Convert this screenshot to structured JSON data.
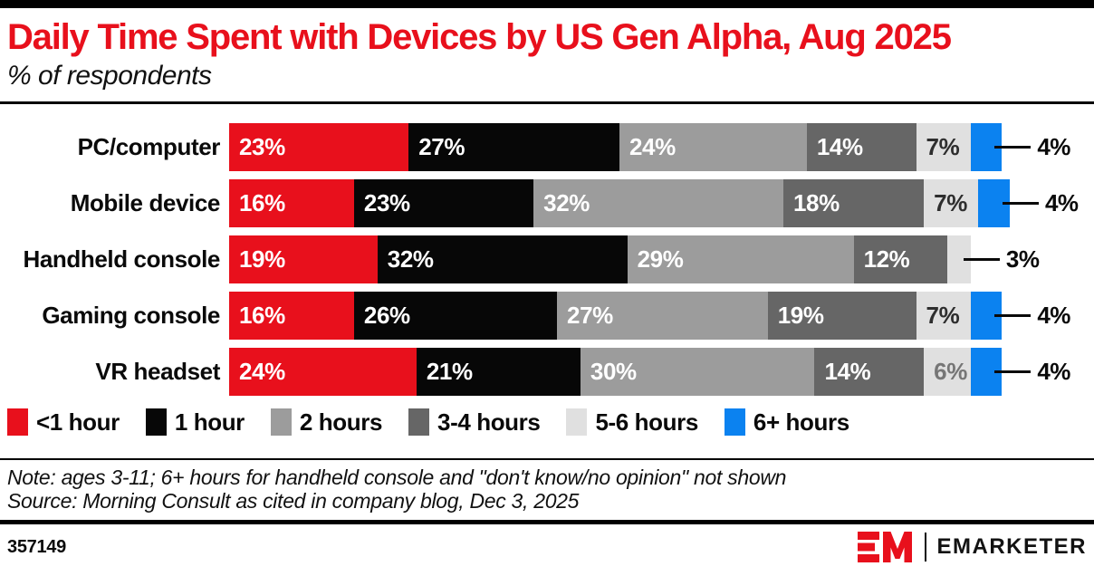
{
  "header": {
    "title": "Daily Time Spent with Devices by US Gen Alpha, Aug 2025",
    "subtitle": "% of respondents"
  },
  "chart_data": {
    "type": "bar",
    "stacked": true,
    "orientation": "horizontal",
    "unit": "% of respondents",
    "categories": [
      "PC/computer",
      "Mobile device",
      "Handheld console",
      "Gaming console",
      "VR headset"
    ],
    "series": [
      {
        "name": "<1 hour",
        "key": "lt1",
        "values": [
          23,
          16,
          19,
          16,
          24
        ]
      },
      {
        "name": "1 hour",
        "key": "h1",
        "values": [
          27,
          23,
          32,
          26,
          21
        ]
      },
      {
        "name": "2 hours",
        "key": "h2",
        "values": [
          24,
          32,
          29,
          27,
          30
        ]
      },
      {
        "name": "3-4 hours",
        "key": "h34",
        "values": [
          14,
          18,
          12,
          19,
          14
        ]
      },
      {
        "name": "5-6 hours",
        "key": "h56",
        "values": [
          7,
          7,
          3,
          7,
          6
        ]
      },
      {
        "name": "6+ hours",
        "key": "h6plus",
        "values": [
          4,
          4,
          null,
          4,
          4
        ]
      }
    ],
    "colors": {
      "lt1": "#e8101c",
      "h1": "#070707",
      "h2": "#9c9c9c",
      "h34": "#666666",
      "h56": "#e0e0e0",
      "h6plus": "#0b82f0"
    },
    "rows": [
      {
        "label": "PC/computer",
        "callout": "4%",
        "segments": [
          {
            "key": "lt1",
            "value": 23,
            "text": "23%",
            "label_color": "white"
          },
          {
            "key": "h1",
            "value": 27,
            "text": "27%",
            "label_color": "white"
          },
          {
            "key": "h2",
            "value": 24,
            "text": "24%",
            "label_color": "white"
          },
          {
            "key": "h34",
            "value": 14,
            "text": "14%",
            "label_color": "white"
          },
          {
            "key": "h56",
            "value": 7,
            "text": "7%",
            "label_color": "dark"
          },
          {
            "key": "h6plus",
            "value": 4,
            "text": "",
            "label_color": null
          }
        ]
      },
      {
        "label": "Mobile device",
        "callout": "4%",
        "segments": [
          {
            "key": "lt1",
            "value": 16,
            "text": "16%",
            "label_color": "white"
          },
          {
            "key": "h1",
            "value": 23,
            "text": "23%",
            "label_color": "white"
          },
          {
            "key": "h2",
            "value": 32,
            "text": "32%",
            "label_color": "white"
          },
          {
            "key": "h34",
            "value": 18,
            "text": "18%",
            "label_color": "white"
          },
          {
            "key": "h56",
            "value": 7,
            "text": "7%",
            "label_color": "dark"
          },
          {
            "key": "h6plus",
            "value": 4,
            "text": "",
            "label_color": null
          }
        ]
      },
      {
        "label": "Handheld console",
        "callout": "3%",
        "segments": [
          {
            "key": "lt1",
            "value": 19,
            "text": "19%",
            "label_color": "white"
          },
          {
            "key": "h1",
            "value": 32,
            "text": "32%",
            "label_color": "white"
          },
          {
            "key": "h2",
            "value": 29,
            "text": "29%",
            "label_color": "white"
          },
          {
            "key": "h34",
            "value": 12,
            "text": "12%",
            "label_color": "white"
          },
          {
            "key": "h56",
            "value": 3,
            "text": "",
            "label_color": null
          }
        ]
      },
      {
        "label": "Gaming console",
        "callout": "4%",
        "segments": [
          {
            "key": "lt1",
            "value": 16,
            "text": "16%",
            "label_color": "white"
          },
          {
            "key": "h1",
            "value": 26,
            "text": "26%",
            "label_color": "white"
          },
          {
            "key": "h2",
            "value": 27,
            "text": "27%",
            "label_color": "white"
          },
          {
            "key": "h34",
            "value": 19,
            "text": "19%",
            "label_color": "white"
          },
          {
            "key": "h56",
            "value": 7,
            "text": "7%",
            "label_color": "dark"
          },
          {
            "key": "h6plus",
            "value": 4,
            "text": "",
            "label_color": null
          }
        ]
      },
      {
        "label": "VR headset",
        "callout": "4%",
        "segments": [
          {
            "key": "lt1",
            "value": 24,
            "text": "24%",
            "label_color": "white"
          },
          {
            "key": "h1",
            "value": 21,
            "text": "21%",
            "label_color": "white"
          },
          {
            "key": "h2",
            "value": 30,
            "text": "30%",
            "label_color": "white"
          },
          {
            "key": "h34",
            "value": 14,
            "text": "14%",
            "label_color": "white"
          },
          {
            "key": "h56",
            "value": 6,
            "text": "6%",
            "label_color": "gray"
          },
          {
            "key": "h6plus",
            "value": 4,
            "text": "",
            "label_color": null
          }
        ]
      }
    ]
  },
  "legend": {
    "items": [
      {
        "key": "lt1",
        "label": "<1 hour"
      },
      {
        "key": "h1",
        "label": "1 hour"
      },
      {
        "key": "h2",
        "label": "2 hours"
      },
      {
        "key": "h34",
        "label": "3-4 hours"
      },
      {
        "key": "h56",
        "label": "5-6 hours"
      },
      {
        "key": "h6plus",
        "label": "6+ hours"
      }
    ]
  },
  "notes": {
    "note": "Note: ages 3-11; 6+ hours for handheld console and \"don't know/no opinion\" not shown",
    "source": "Source: Morning Consult as cited in company blog, Dec 3, 2025"
  },
  "footer": {
    "chart_id": "357149",
    "brand": "EMARKETER",
    "brand_color": "#e8101c"
  }
}
